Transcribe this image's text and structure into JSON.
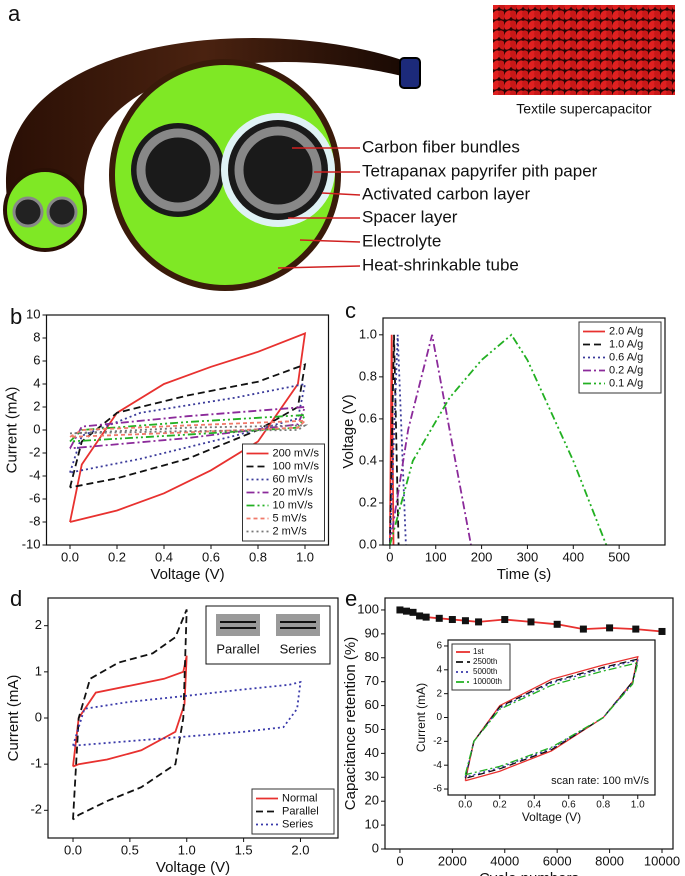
{
  "panel_a": {
    "label": "a",
    "photo_caption": "Textile supercapacitor",
    "layers": [
      "Carbon fiber bundles",
      "Tetrapanax papyrifer pith paper",
      "Activated carbon layer",
      "Spacer layer",
      "Electrolyte",
      "Heat-shrinkable tube"
    ]
  },
  "chart_data": [
    {
      "type": "line",
      "label": "b",
      "xlabel": "Voltage (V)",
      "ylabel": "Current (mA)",
      "xlim": [
        -0.1,
        1.1
      ],
      "ylim": [
        -10,
        10
      ],
      "xticks": [
        {
          "value": 0,
          "label": "0.0"
        },
        0.2,
        0.4,
        0.6,
        0.8,
        {
          "value": 1,
          "label": "1.0"
        }
      ],
      "yticks": [
        -10,
        -8,
        -6,
        -4,
        -2,
        0,
        2,
        4,
        6,
        8,
        10
      ],
      "legend": "lower right",
      "series": [
        {
          "name": "200 mV/s",
          "color": "#e8312f",
          "dash": "solid",
          "x": [
            0,
            0.05,
            0.2,
            0.4,
            0.6,
            0.8,
            1.0,
            0.97,
            0.8,
            0.6,
            0.4,
            0.2,
            0
          ],
          "values": [
            -8,
            -3,
            1.5,
            4,
            5.5,
            6.8,
            8.4,
            4,
            -1,
            -3.5,
            -5.5,
            -7,
            -8
          ]
        },
        {
          "name": "100 mV/s",
          "color": "#111111",
          "dash": "dash",
          "x": [
            0,
            0.05,
            0.2,
            0.5,
            0.8,
            1.0,
            0.97,
            0.8,
            0.5,
            0.2,
            0
          ],
          "values": [
            -5,
            -1,
            1.5,
            3,
            4.2,
            5.7,
            2,
            0,
            -2.5,
            -4.2,
            -5
          ]
        },
        {
          "name": "60 mV/s",
          "color": "#3a3a9a",
          "dash": "dot",
          "x": [
            0,
            0.05,
            0.3,
            0.7,
            1.0,
            0.97,
            0.7,
            0.3,
            0
          ],
          "values": [
            -3.7,
            -0.5,
            1.5,
            2.8,
            4,
            1,
            -0.5,
            -2.5,
            -3.7
          ]
        },
        {
          "name": "20 mV/s",
          "color": "#8b2a9a",
          "dash": "dashdot",
          "x": [
            0,
            0.05,
            0.5,
            1.0,
            0.97,
            0.5,
            0
          ],
          "values": [
            -1.6,
            0.3,
            1.2,
            2,
            0.5,
            -0.7,
            -1.6
          ]
        },
        {
          "name": "10 mV/s",
          "color": "#22b022",
          "dash": "dashdotdot",
          "x": [
            0,
            0.05,
            0.5,
            1.0,
            0.97,
            0.5,
            0
          ],
          "values": [
            -1,
            0,
            0.7,
            1.3,
            0.2,
            -0.4,
            -1
          ]
        },
        {
          "name": "5 mV/s",
          "color": "#f07a6a",
          "dash": "shortdash",
          "x": [
            0,
            0.05,
            0.5,
            1.0,
            0.97,
            0.5,
            0
          ],
          "values": [
            -0.6,
            0,
            0.4,
            0.8,
            0.2,
            -0.2,
            -0.6
          ]
        },
        {
          "name": "2 mV/s",
          "color": "#777777",
          "dash": "dot",
          "x": [
            0,
            0.5,
            1.0,
            0.97,
            0.5,
            0
          ],
          "values": [
            -0.3,
            0.2,
            0.4,
            0,
            -0.1,
            -0.3
          ]
        }
      ]
    },
    {
      "type": "line",
      "label": "c",
      "xlabel": "Time (s)",
      "ylabel": "Voltage (V)",
      "xlim": [
        -15,
        600
      ],
      "ylim": [
        0,
        1.08
      ],
      "xticks": [
        0,
        100,
        200,
        300,
        400,
        500
      ],
      "yticks": [
        {
          "value": 0,
          "label": "0.0"
        },
        0.2,
        0.4,
        0.6,
        0.8,
        {
          "value": 1,
          "label": "1.0"
        }
      ],
      "legend": "upper right",
      "series": [
        {
          "name": "2.0 A/g",
          "color": "#e8312f",
          "dash": "solid",
          "x": [
            0,
            4,
            8
          ],
          "values": [
            0,
            1,
            0
          ]
        },
        {
          "name": "1.0 A/g",
          "color": "#111111",
          "dash": "dash",
          "x": [
            0,
            9,
            19
          ],
          "values": [
            0,
            1,
            0
          ]
        },
        {
          "name": "0.6 A/g",
          "color": "#3a3a9a",
          "dash": "dot",
          "x": [
            0,
            17,
            35
          ],
          "values": [
            0,
            1,
            0
          ]
        },
        {
          "name": "0.2 A/g",
          "color": "#8b2a9a",
          "dash": "dashdot",
          "x": [
            0,
            40,
            92,
            130,
            177
          ],
          "values": [
            0,
            0.55,
            1,
            0.55,
            0
          ]
        },
        {
          "name": "0.1 A/g",
          "color": "#22b022",
          "dash": "dashdotdot",
          "x": [
            0,
            50,
            130,
            200,
            265,
            300,
            400,
            472
          ],
          "values": [
            0,
            0.4,
            0.7,
            0.88,
            1,
            0.88,
            0.4,
            0
          ]
        }
      ]
    },
    {
      "type": "line",
      "label": "d",
      "xlabel": "Voltage (V)",
      "ylabel": "Current (mA)",
      "xlim": [
        -0.22,
        2.33
      ],
      "ylim": [
        -2.6,
        2.6
      ],
      "xticks": [
        {
          "value": 0,
          "label": "0.0"
        },
        0.5,
        {
          "value": 1,
          "label": "1.0"
        },
        1.5,
        {
          "value": 2,
          "label": "2.0"
        }
      ],
      "yticks": [
        -2,
        -1,
        0,
        1,
        2
      ],
      "legend": "lower right",
      "inset_labels": [
        "Parallel",
        "Series"
      ],
      "series": [
        {
          "name": "Normal",
          "color": "#e8312f",
          "dash": "solid",
          "x": [
            0,
            0.05,
            0.2,
            0.5,
            0.8,
            0.97,
            1,
            0.98,
            0.9,
            0.6,
            0.3,
            0.05,
            0
          ],
          "values": [
            -1.05,
            0,
            0.55,
            0.7,
            0.85,
            1.0,
            1.35,
            0.3,
            -0.3,
            -0.7,
            -0.9,
            -1.0,
            -1.05
          ]
        },
        {
          "name": "Parallel",
          "color": "#111111",
          "dash": "dash",
          "x": [
            0,
            0.05,
            0.15,
            0.4,
            0.7,
            0.9,
            1,
            0.97,
            0.9,
            0.6,
            0.3,
            0.05,
            0
          ],
          "values": [
            -2.2,
            0,
            0.85,
            1.2,
            1.4,
            1.75,
            2.35,
            0,
            -1,
            -1.5,
            -1.8,
            -2.1,
            -2.2
          ]
        },
        {
          "name": "Series",
          "color": "#3a3aaa",
          "dash": "dot",
          "x": [
            0,
            0.1,
            0.5,
            1.0,
            1.5,
            1.9,
            2,
            1.97,
            1.85,
            1.5,
            1.0,
            0.5,
            0
          ],
          "values": [
            -0.6,
            0.2,
            0.35,
            0.48,
            0.62,
            0.72,
            0.78,
            0.2,
            -0.2,
            -0.3,
            -0.4,
            -0.5,
            -0.6
          ]
        }
      ]
    },
    {
      "type": "line",
      "label": "e",
      "xlabel": "Cycle numbers",
      "ylabel": "Capacitance retention (%)",
      "xlim": [
        -570,
        10420
      ],
      "ylim": [
        0,
        105
      ],
      "xticks": [
        0,
        2000,
        4000,
        6000,
        8000,
        10000
      ],
      "yticks": [
        0,
        10,
        20,
        30,
        40,
        50,
        60,
        70,
        80,
        90,
        100
      ],
      "series": [
        {
          "color": "#111111",
          "line_color": "#e8312f",
          "dash": "solid",
          "marker": "square",
          "x": [
            0,
            250,
            500,
            750,
            1000,
            1500,
            2000,
            2500,
            3000,
            4000,
            5000,
            6000,
            7000,
            8000,
            9000,
            10000
          ],
          "values": [
            100,
            99.5,
            99,
            97.5,
            97,
            96.5,
            96,
            95.5,
            95,
            96,
            95,
            94,
            92,
            92.5,
            92,
            91
          ]
        }
      ]
    },
    {
      "type": "line",
      "xlabel": "Voltage (V)",
      "ylabel": "Current (mA)",
      "annotation": "scan rate: 100 mV/s",
      "xlim": [
        -0.1,
        1.1
      ],
      "ylim": [
        -6.5,
        6.5
      ],
      "xticks": [
        {
          "value": 0,
          "label": "0.0"
        },
        0.2,
        0.4,
        0.6,
        0.8,
        {
          "value": 1,
          "label": "1.0"
        }
      ],
      "yticks": [
        -6,
        -4,
        -2,
        0,
        2,
        4,
        6
      ],
      "legend": "upper left",
      "series": [
        {
          "name": "1st",
          "color": "#e8312f",
          "dash": "solid",
          "x": [
            0,
            0.05,
            0.2,
            0.5,
            0.8,
            1,
            0.97,
            0.8,
            0.5,
            0.2,
            0
          ],
          "values": [
            -5.3,
            -2,
            1,
            3.2,
            4.4,
            5.1,
            3,
            0,
            -2.8,
            -4.5,
            -5.3
          ]
        },
        {
          "name": "2500th",
          "color": "#111111",
          "dash": "dash",
          "x": [
            0,
            0.05,
            0.2,
            0.5,
            0.8,
            1,
            0.97,
            0.8,
            0.5,
            0.2,
            0
          ],
          "values": [
            -5.1,
            -2,
            0.9,
            3,
            4.2,
            4.9,
            3,
            0,
            -2.7,
            -4.3,
            -5.1
          ]
        },
        {
          "name": "5000th",
          "color": "#3a3aaa",
          "dash": "dot",
          "x": [
            0,
            0.05,
            0.2,
            0.5,
            0.8,
            1,
            0.97,
            0.8,
            0.5,
            0.2,
            0
          ],
          "values": [
            -5,
            -2,
            0.8,
            2.9,
            4.1,
            4.8,
            2.9,
            0,
            -2.6,
            -4.2,
            -5
          ]
        },
        {
          "name": "10000th",
          "color": "#22b022",
          "dash": "dashdot",
          "x": [
            0,
            0.05,
            0.2,
            0.5,
            0.8,
            1,
            0.97,
            0.8,
            0.5,
            0.2,
            0
          ],
          "values": [
            -4.8,
            -2,
            0.7,
            2.7,
            3.9,
            4.6,
            2.8,
            0,
            -2.5,
            -4.1,
            -4.8
          ]
        }
      ]
    }
  ]
}
